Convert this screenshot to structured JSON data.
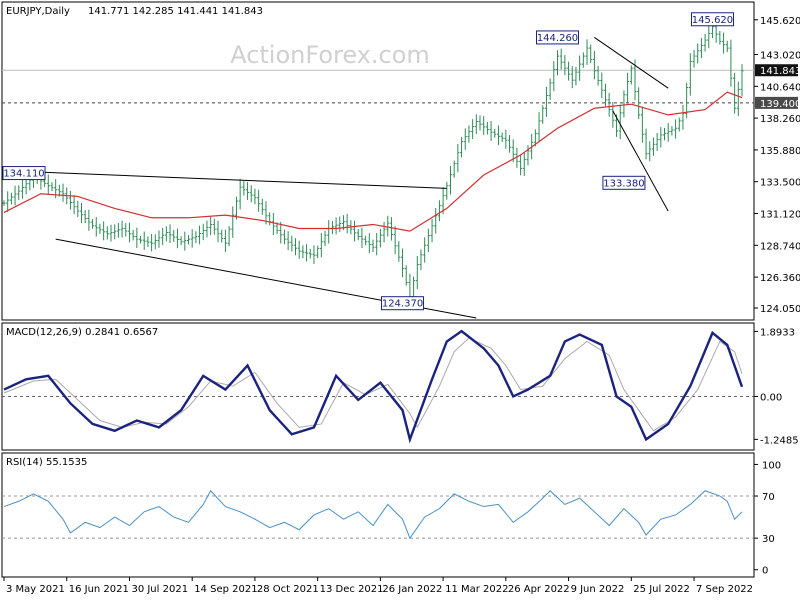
{
  "header": {
    "symbol": "EURJPY,Daily",
    "ohlc": "141.771 142.285 141.441 141.843"
  },
  "watermark": "ActionForex.com",
  "colors": {
    "price_bar": "#2e8b57",
    "ma": "#d32f2f",
    "macd": "#1a237e",
    "signal": "#aaaaaa",
    "rsi": "#4a90c8",
    "box_bg": "#ffffff",
    "box_border": "#1a237e",
    "last_price_bg": "#111111"
  },
  "price_panel": {
    "ylim": [
      123.3,
      146.8
    ],
    "axis_ticks": [
      "145.620",
      "143.020",
      "140.640",
      "138.260",
      "135.880",
      "133.500",
      "131.120",
      "128.740",
      "126.360",
      "124.050"
    ],
    "tick_values": [
      145.62,
      143.02,
      140.64,
      138.26,
      135.88,
      133.5,
      131.12,
      128.74,
      126.36,
      124.05
    ],
    "last_price": "141.843",
    "last_value": 141.843,
    "level_line": "139.400",
    "level_value": 139.4,
    "annotations": [
      {
        "text": "134.110",
        "x": 1,
        "y": 134.11
      },
      {
        "text": "124.370",
        "x": 108,
        "y": 124.37
      },
      {
        "text": "144.260",
        "x": 150,
        "y": 144.26
      },
      {
        "text": "133.380",
        "x": 168,
        "y": 133.38
      },
      {
        "text": "145.620",
        "x": 192,
        "y": 145.62
      }
    ],
    "trendlines": [
      {
        "x1": 2,
        "y1": 134.3,
        "x2": 120,
        "y2": 133.0
      },
      {
        "x1": 14,
        "y1": 129.2,
        "x2": 128,
        "y2": 123.3
      },
      {
        "x1": 160,
        "y1": 144.3,
        "x2": 180,
        "y2": 140.5
      },
      {
        "x1": 165,
        "y1": 138.8,
        "x2": 180,
        "y2": 131.3
      }
    ]
  },
  "macd_panel": {
    "label": "MACD(12,26,9) 0.2841 0.6567",
    "ylim": [
      -1.5,
      2.05
    ],
    "axis_ticks": [
      "1.8933",
      "0.00",
      "-1.2485"
    ],
    "tick_values": [
      1.8933,
      0,
      -1.2485
    ]
  },
  "rsi_panel": {
    "label": "RSI(14) 55.1535",
    "ylim": [
      -5,
      108
    ],
    "axis_ticks": [
      "100",
      "70",
      "30",
      "0"
    ],
    "tick_values": [
      100,
      70,
      30,
      0
    ]
  },
  "x_axis": {
    "labels": [
      "3 May 2021",
      "16 Jun 2021",
      "30 Jul 2021",
      "14 Sep 2021",
      "28 Oct 2021",
      "13 Dec 2021",
      "26 Jan 2022",
      "11 Mar 2022",
      "26 Apr 2022",
      "9 Jun 2022",
      "25 Jul 2022",
      "7 Sep 2022"
    ],
    "positions": [
      0,
      17,
      34,
      51,
      68,
      85,
      102,
      119,
      136,
      153,
      170,
      187
    ]
  },
  "chart_data": {
    "type": "line",
    "title": "EURJPY,Daily",
    "x_unit": "trading day index (0 = 3 May 2021)",
    "price_close": [
      [
        0,
        131.9
      ],
      [
        4,
        132.8
      ],
      [
        8,
        133.9
      ],
      [
        12,
        133.2
      ],
      [
        16,
        132.6
      ],
      [
        20,
        131.3
      ],
      [
        24,
        130.2
      ],
      [
        28,
        129.6
      ],
      [
        32,
        130.0
      ],
      [
        36,
        129.2
      ],
      [
        40,
        128.9
      ],
      [
        44,
        129.7
      ],
      [
        48,
        129.0
      ],
      [
        52,
        129.4
      ],
      [
        56,
        130.3
      ],
      [
        60,
        128.9
      ],
      [
        64,
        133.1
      ],
      [
        68,
        132.3
      ],
      [
        72,
        130.5
      ],
      [
        76,
        129.2
      ],
      [
        80,
        128.3
      ],
      [
        84,
        128.0
      ],
      [
        88,
        130.0
      ],
      [
        92,
        130.5
      ],
      [
        96,
        129.4
      ],
      [
        100,
        128.6
      ],
      [
        104,
        130.4
      ],
      [
        108,
        127.0
      ],
      [
        110,
        124.9
      ],
      [
        112,
        127.3
      ],
      [
        116,
        130.2
      ],
      [
        120,
        133.2
      ],
      [
        124,
        136.5
      ],
      [
        128,
        138.0
      ],
      [
        132,
        137.2
      ],
      [
        136,
        136.6
      ],
      [
        140,
        134.5
      ],
      [
        144,
        137.1
      ],
      [
        148,
        140.9
      ],
      [
        150,
        142.9
      ],
      [
        154,
        141.1
      ],
      [
        158,
        143.5
      ],
      [
        160,
        141.8
      ],
      [
        164,
        138.9
      ],
      [
        166,
        137.3
      ],
      [
        168,
        140.0
      ],
      [
        170,
        142.0
      ],
      [
        172,
        138.5
      ],
      [
        174,
        135.6
      ],
      [
        178,
        137.0
      ],
      [
        182,
        137.5
      ],
      [
        184,
        138.6
      ],
      [
        186,
        142.5
      ],
      [
        190,
        144.1
      ],
      [
        192,
        145.1
      ],
      [
        194,
        144.0
      ],
      [
        196,
        143.5
      ],
      [
        198,
        139.0
      ],
      [
        200,
        141.8
      ]
    ],
    "ma": [
      [
        0,
        131.2
      ],
      [
        10,
        132.6
      ],
      [
        20,
        132.4
      ],
      [
        30,
        131.5
      ],
      [
        40,
        130.8
      ],
      [
        50,
        130.8
      ],
      [
        60,
        131.0
      ],
      [
        70,
        130.6
      ],
      [
        80,
        130.0
      ],
      [
        90,
        130.0
      ],
      [
        100,
        130.3
      ],
      [
        110,
        129.8
      ],
      [
        120,
        131.5
      ],
      [
        130,
        134.0
      ],
      [
        140,
        135.5
      ],
      [
        150,
        137.5
      ],
      [
        160,
        139.0
      ],
      [
        170,
        139.3
      ],
      [
        180,
        138.5
      ],
      [
        190,
        138.9
      ],
      [
        196,
        140.2
      ],
      [
        200,
        139.8
      ]
    ],
    "macd": [
      [
        0,
        0.2
      ],
      [
        6,
        0.5
      ],
      [
        12,
        0.6
      ],
      [
        18,
        -0.2
      ],
      [
        24,
        -0.8
      ],
      [
        30,
        -1.0
      ],
      [
        36,
        -0.7
      ],
      [
        42,
        -0.9
      ],
      [
        48,
        -0.4
      ],
      [
        54,
        0.6
      ],
      [
        60,
        0.2
      ],
      [
        66,
        0.9
      ],
      [
        72,
        -0.4
      ],
      [
        78,
        -1.1
      ],
      [
        84,
        -0.9
      ],
      [
        90,
        0.6
      ],
      [
        96,
        -0.1
      ],
      [
        102,
        0.4
      ],
      [
        108,
        -0.4
      ],
      [
        110,
        -1.25
      ],
      [
        116,
        0.5
      ],
      [
        120,
        1.6
      ],
      [
        124,
        1.9
      ],
      [
        130,
        1.4
      ],
      [
        134,
        0.9
      ],
      [
        138,
        0.0
      ],
      [
        142,
        0.2
      ],
      [
        148,
        0.6
      ],
      [
        152,
        1.6
      ],
      [
        156,
        1.8
      ],
      [
        162,
        1.5
      ],
      [
        166,
        0.0
      ],
      [
        170,
        -0.3
      ],
      [
        174,
        -1.25
      ],
      [
        180,
        -0.8
      ],
      [
        186,
        0.3
      ],
      [
        192,
        1.85
      ],
      [
        196,
        1.5
      ],
      [
        200,
        0.28
      ]
    ],
    "signal": [
      [
        0,
        0.1
      ],
      [
        8,
        0.45
      ],
      [
        14,
        0.5
      ],
      [
        20,
        -0.1
      ],
      [
        26,
        -0.7
      ],
      [
        32,
        -0.9
      ],
      [
        38,
        -0.75
      ],
      [
        44,
        -0.8
      ],
      [
        50,
        -0.3
      ],
      [
        56,
        0.45
      ],
      [
        62,
        0.3
      ],
      [
        68,
        0.7
      ],
      [
        74,
        -0.2
      ],
      [
        80,
        -0.9
      ],
      [
        86,
        -0.8
      ],
      [
        92,
        0.4
      ],
      [
        98,
        0.05
      ],
      [
        104,
        0.35
      ],
      [
        110,
        -0.5
      ],
      [
        112,
        -0.9
      ],
      [
        118,
        0.3
      ],
      [
        122,
        1.3
      ],
      [
        126,
        1.7
      ],
      [
        132,
        1.4
      ],
      [
        136,
        0.9
      ],
      [
        140,
        0.2
      ],
      [
        146,
        0.3
      ],
      [
        152,
        1.1
      ],
      [
        158,
        1.6
      ],
      [
        164,
        1.2
      ],
      [
        168,
        0.2
      ],
      [
        172,
        -0.4
      ],
      [
        176,
        -1.0
      ],
      [
        182,
        -0.6
      ],
      [
        188,
        0.2
      ],
      [
        194,
        1.6
      ],
      [
        198,
        1.3
      ],
      [
        200,
        0.66
      ]
    ],
    "rsi": [
      [
        0,
        60
      ],
      [
        4,
        65
      ],
      [
        8,
        72
      ],
      [
        12,
        65
      ],
      [
        16,
        48
      ],
      [
        18,
        35
      ],
      [
        22,
        45
      ],
      [
        26,
        40
      ],
      [
        30,
        50
      ],
      [
        34,
        42
      ],
      [
        38,
        55
      ],
      [
        42,
        60
      ],
      [
        46,
        50
      ],
      [
        50,
        45
      ],
      [
        54,
        62
      ],
      [
        56,
        75
      ],
      [
        60,
        60
      ],
      [
        64,
        55
      ],
      [
        68,
        48
      ],
      [
        72,
        40
      ],
      [
        76,
        45
      ],
      [
        80,
        38
      ],
      [
        84,
        52
      ],
      [
        88,
        58
      ],
      [
        92,
        48
      ],
      [
        96,
        55
      ],
      [
        100,
        42
      ],
      [
        104,
        62
      ],
      [
        108,
        48
      ],
      [
        110,
        30
      ],
      [
        114,
        50
      ],
      [
        118,
        58
      ],
      [
        122,
        72
      ],
      [
        126,
        65
      ],
      [
        130,
        60
      ],
      [
        134,
        62
      ],
      [
        138,
        45
      ],
      [
        142,
        55
      ],
      [
        146,
        68
      ],
      [
        148,
        75
      ],
      [
        152,
        62
      ],
      [
        156,
        68
      ],
      [
        160,
        55
      ],
      [
        164,
        42
      ],
      [
        168,
        58
      ],
      [
        172,
        45
      ],
      [
        174,
        33
      ],
      [
        178,
        48
      ],
      [
        182,
        52
      ],
      [
        186,
        62
      ],
      [
        190,
        75
      ],
      [
        194,
        70
      ],
      [
        196,
        65
      ],
      [
        198,
        48
      ],
      [
        200,
        55
      ]
    ]
  }
}
